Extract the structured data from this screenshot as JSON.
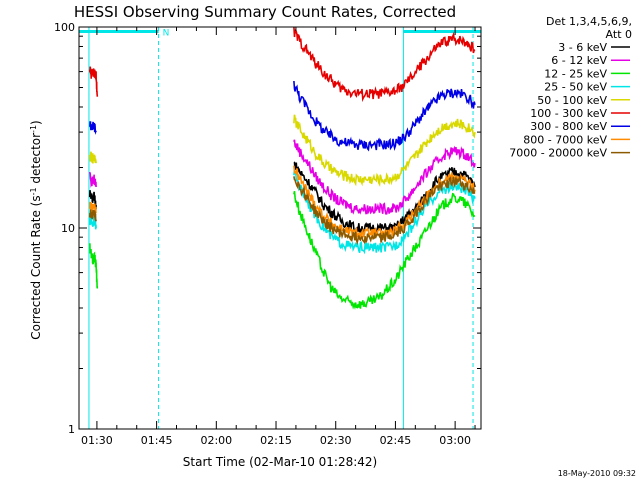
{
  "chart_data": {
    "type": "line",
    "title": "HESSI Observing Summary Count Rates, Corrected",
    "xlabel": "Start Time (02-Mar-10 01:28:42)",
    "ylabel_prefix": "Corrected Count Rate (s",
    "ylabel_sup1": "-1",
    "ylabel_mid": " detector",
    "ylabel_sup2": "-1",
    "ylabel_suffix": ")",
    "yscale": "log",
    "ylim": [
      1,
      100
    ],
    "xlim_minutes": [
      85.5,
      186.5
    ],
    "x_ticks": [
      {
        "m": 90,
        "label": "01:30"
      },
      {
        "m": 105,
        "label": "01:45"
      },
      {
        "m": 120,
        "label": "02:00"
      },
      {
        "m": 135,
        "label": "02:15"
      },
      {
        "m": 150,
        "label": "02:30"
      },
      {
        "m": 165,
        "label": "02:45"
      },
      {
        "m": 180,
        "label": "03:00"
      }
    ],
    "y_ticks": [
      {
        "v": 1,
        "label": "1"
      },
      {
        "v": 10,
        "label": "10"
      },
      {
        "v": 100,
        "label": "100"
      }
    ],
    "legend": {
      "header_line1": "Det 1,3,4,5,6,9,",
      "header_line2": "Att 0",
      "placement": "outside-right"
    },
    "series": [
      {
        "name": "3 - 6 keV",
        "color": "#000000",
        "segments": [
          {
            "x": [
              88.2,
              88.8,
              89.3,
              89.8
            ],
            "y": [
              15,
              14,
              14.5,
              13
            ]
          },
          {
            "x": [
              139.5,
              141,
              143,
              145,
              147,
              149,
              151,
              153,
              155,
              157,
              159,
              161,
              163,
              165,
              167,
              169,
              171,
              173,
              175,
              177,
              179,
              181,
              183,
              185
            ],
            "y": [
              21,
              19,
              17,
              15,
              13,
              12,
              11,
              10.5,
              10,
              10,
              10,
              10,
              10,
              10,
              11,
              12,
              13,
              15,
              17,
              18,
              19,
              19,
              18,
              16
            ]
          }
        ]
      },
      {
        "name": "6 - 12 keV",
        "color": "#e600e6",
        "segments": [
          {
            "x": [
              88.2,
              88.8,
              89.3,
              89.8
            ],
            "y": [
              18,
              17,
              17.5,
              16
            ]
          },
          {
            "x": [
              139.5,
              141,
              143,
              145,
              147,
              149,
              151,
              153,
              155,
              157,
              159,
              161,
              163,
              165,
              167,
              169,
              171,
              173,
              175,
              177,
              179,
              181,
              183,
              185
            ],
            "y": [
              27,
              24,
              21,
              18,
              16,
              14.5,
              13.5,
              13,
              12.5,
              12.5,
              12.5,
              12.5,
              12.5,
              12.5,
              13.5,
              15,
              17,
              19,
              21,
              23,
              24,
              24,
              23,
              21
            ]
          }
        ]
      },
      {
        "name": "12 - 25 keV",
        "color": "#00e600",
        "segments": [
          {
            "x": [
              88.2,
              88.6,
              89,
              89.4,
              89.8,
              90.1
            ],
            "y": [
              8,
              7.5,
              7,
              7.2,
              6.5,
              5
            ]
          },
          {
            "x": [
              139.5,
              141,
              143,
              145,
              147,
              149,
              151,
              153,
              155,
              157,
              159,
              161,
              163,
              165,
              167,
              169,
              171,
              173,
              175,
              177,
              179,
              181,
              183,
              185
            ],
            "y": [
              15,
              12,
              9.5,
              7.5,
              6,
              5,
              4.5,
              4.3,
              4.2,
              4.2,
              4.3,
              4.5,
              5,
              5.5,
              6.5,
              7.5,
              8.5,
              10,
              11.5,
              13,
              14,
              14,
              13,
              11.5
            ]
          }
        ]
      },
      {
        "name": "25 - 50 keV",
        "color": "#00e6e6",
        "segments": [
          {
            "x": [
              88.2,
              88.8,
              89.3,
              89.8
            ],
            "y": [
              11,
              10.5,
              10.8,
              10
            ]
          },
          {
            "x": [
              139.5,
              141,
              143,
              145,
              147,
              149,
              151,
              153,
              155,
              157,
              159,
              161,
              163,
              165,
              167,
              169,
              171,
              173,
              175,
              177,
              179,
              181,
              183,
              185
            ],
            "y": [
              19,
              16,
              13.5,
              11.5,
              10,
              9,
              8.5,
              8.2,
              8,
              8,
              8,
              8,
              8,
              8.2,
              9,
              10,
              11.5,
              13,
              14.5,
              15.5,
              16,
              16,
              15,
              14
            ]
          }
        ]
      },
      {
        "name": "50 - 100 keV",
        "color": "#d9d900",
        "segments": [
          {
            "x": [
              88.2,
              88.8,
              89.3,
              89.8
            ],
            "y": [
              23,
              22,
              22.5,
              21
            ]
          },
          {
            "x": [
              139.5,
              141,
              143,
              145,
              147,
              149,
              151,
              153,
              155,
              157,
              159,
              161,
              163,
              165,
              167,
              169,
              171,
              173,
              175,
              177,
              179,
              181,
              183,
              185
            ],
            "y": [
              35,
              31,
              27,
              23.5,
              21,
              19.5,
              18.5,
              18,
              17.5,
              17.5,
              17.5,
              17.5,
              17.5,
              18,
              19.5,
              21.5,
              24,
              27,
              30,
              32,
              33,
              33,
              32,
              30
            ]
          }
        ]
      },
      {
        "name": "100 - 300 keV",
        "color": "#e60000",
        "segments": [
          {
            "x": [
              88.2,
              88.6,
              89,
              89.4,
              89.8,
              90.1
            ],
            "y": [
              62,
              58,
              60,
              59,
              57,
              45
            ]
          },
          {
            "x": [
              139.5,
              141,
              143,
              145,
              147,
              149,
              151,
              153,
              155,
              157,
              159,
              161,
              163,
              165,
              167,
              169,
              171,
              173,
              175,
              177,
              179,
              181,
              183,
              185
            ],
            "y": [
              95,
              85,
              75,
              66,
              59,
              54,
              50,
              48,
              47,
              46.5,
              46.5,
              46.5,
              47,
              48,
              51,
              56,
              63,
              70,
              78,
              84,
              87,
              87,
              84,
              77
            ]
          }
        ]
      },
      {
        "name": "300 - 800 keV",
        "color": "#0000e6",
        "segments": [
          {
            "x": [
              88.2,
              88.8,
              89.3,
              89.8
            ],
            "y": [
              33,
              32,
              32.5,
              30
            ]
          },
          {
            "x": [
              139.5,
              141,
              143,
              145,
              147,
              149,
              151,
              153,
              155,
              157,
              159,
              161,
              163,
              165,
              167,
              169,
              171,
              173,
              175,
              177,
              179,
              181,
              183,
              185
            ],
            "y": [
              52,
              45,
              39,
              34,
              30.5,
              28.5,
              27,
              26.5,
              26,
              26,
              26,
              26,
              26,
              26.5,
              28,
              31,
              35,
              39,
              43,
              46,
              47,
              47,
              45,
              41
            ]
          }
        ]
      },
      {
        "name": "800 - 7000 keV",
        "color": "#ff8c00",
        "segments": [
          {
            "x": [
              88.2,
              88.8,
              89.3,
              89.8
            ],
            "y": [
              13,
              12.5,
              12.8,
              12
            ]
          },
          {
            "x": [
              139.5,
              141,
              143,
              145,
              147,
              149,
              151,
              153,
              155,
              157,
              159,
              161,
              163,
              165,
              167,
              169,
              171,
              173,
              175,
              177,
              179,
              181,
              183,
              185
            ],
            "y": [
              20,
              17.5,
              15,
              13,
              11.5,
              10.5,
              10,
              9.6,
              9.4,
              9.4,
              9.4,
              9.4,
              9.4,
              9.6,
              10.5,
              11.5,
              13,
              14.5,
              16,
              17.5,
              18,
              18,
              17,
              15.5
            ]
          }
        ]
      },
      {
        "name": "7000 - 20000 keV",
        "color": "#8b5a00",
        "segments": [
          {
            "x": [
              88.2,
              88.8,
              89.3,
              89.8
            ],
            "y": [
              12,
              11.5,
              11.8,
              11
            ]
          },
          {
            "x": [
              139.5,
              141,
              143,
              145,
              147,
              149,
              151,
              153,
              155,
              157,
              159,
              161,
              163,
              165,
              167,
              169,
              171,
              173,
              175,
              177,
              179,
              181,
              183,
              185
            ],
            "y": [
              18,
              16,
              14,
              12,
              10.8,
              10,
              9.5,
              9.2,
              9,
              9,
              9,
              9,
              9,
              9.2,
              10,
              11,
              12.5,
              14,
              15.5,
              16.5,
              17,
              17,
              16,
              15
            ]
          }
        ]
      }
    ],
    "observing_intervals": [
      {
        "from_m": 85.5,
        "to_m": 105.5,
        "y": 95,
        "color": "#00e6e6"
      },
      {
        "from_m": 167,
        "to_m": 186.5,
        "y": 95,
        "color": "#00e6e6"
      }
    ],
    "observing_marker_label": "N",
    "vertical_lines": [
      {
        "m": 88,
        "style": "solid",
        "color": "#00e6e6"
      },
      {
        "m": 105.5,
        "style": "dashed",
        "color": "#00e6e6"
      },
      {
        "m": 167,
        "style": "solid",
        "color": "#00e6e6"
      },
      {
        "m": 184.5,
        "style": "dashed",
        "color": "#00e6e6"
      }
    ],
    "footer_timestamp": "18-May-2010 09:32"
  }
}
